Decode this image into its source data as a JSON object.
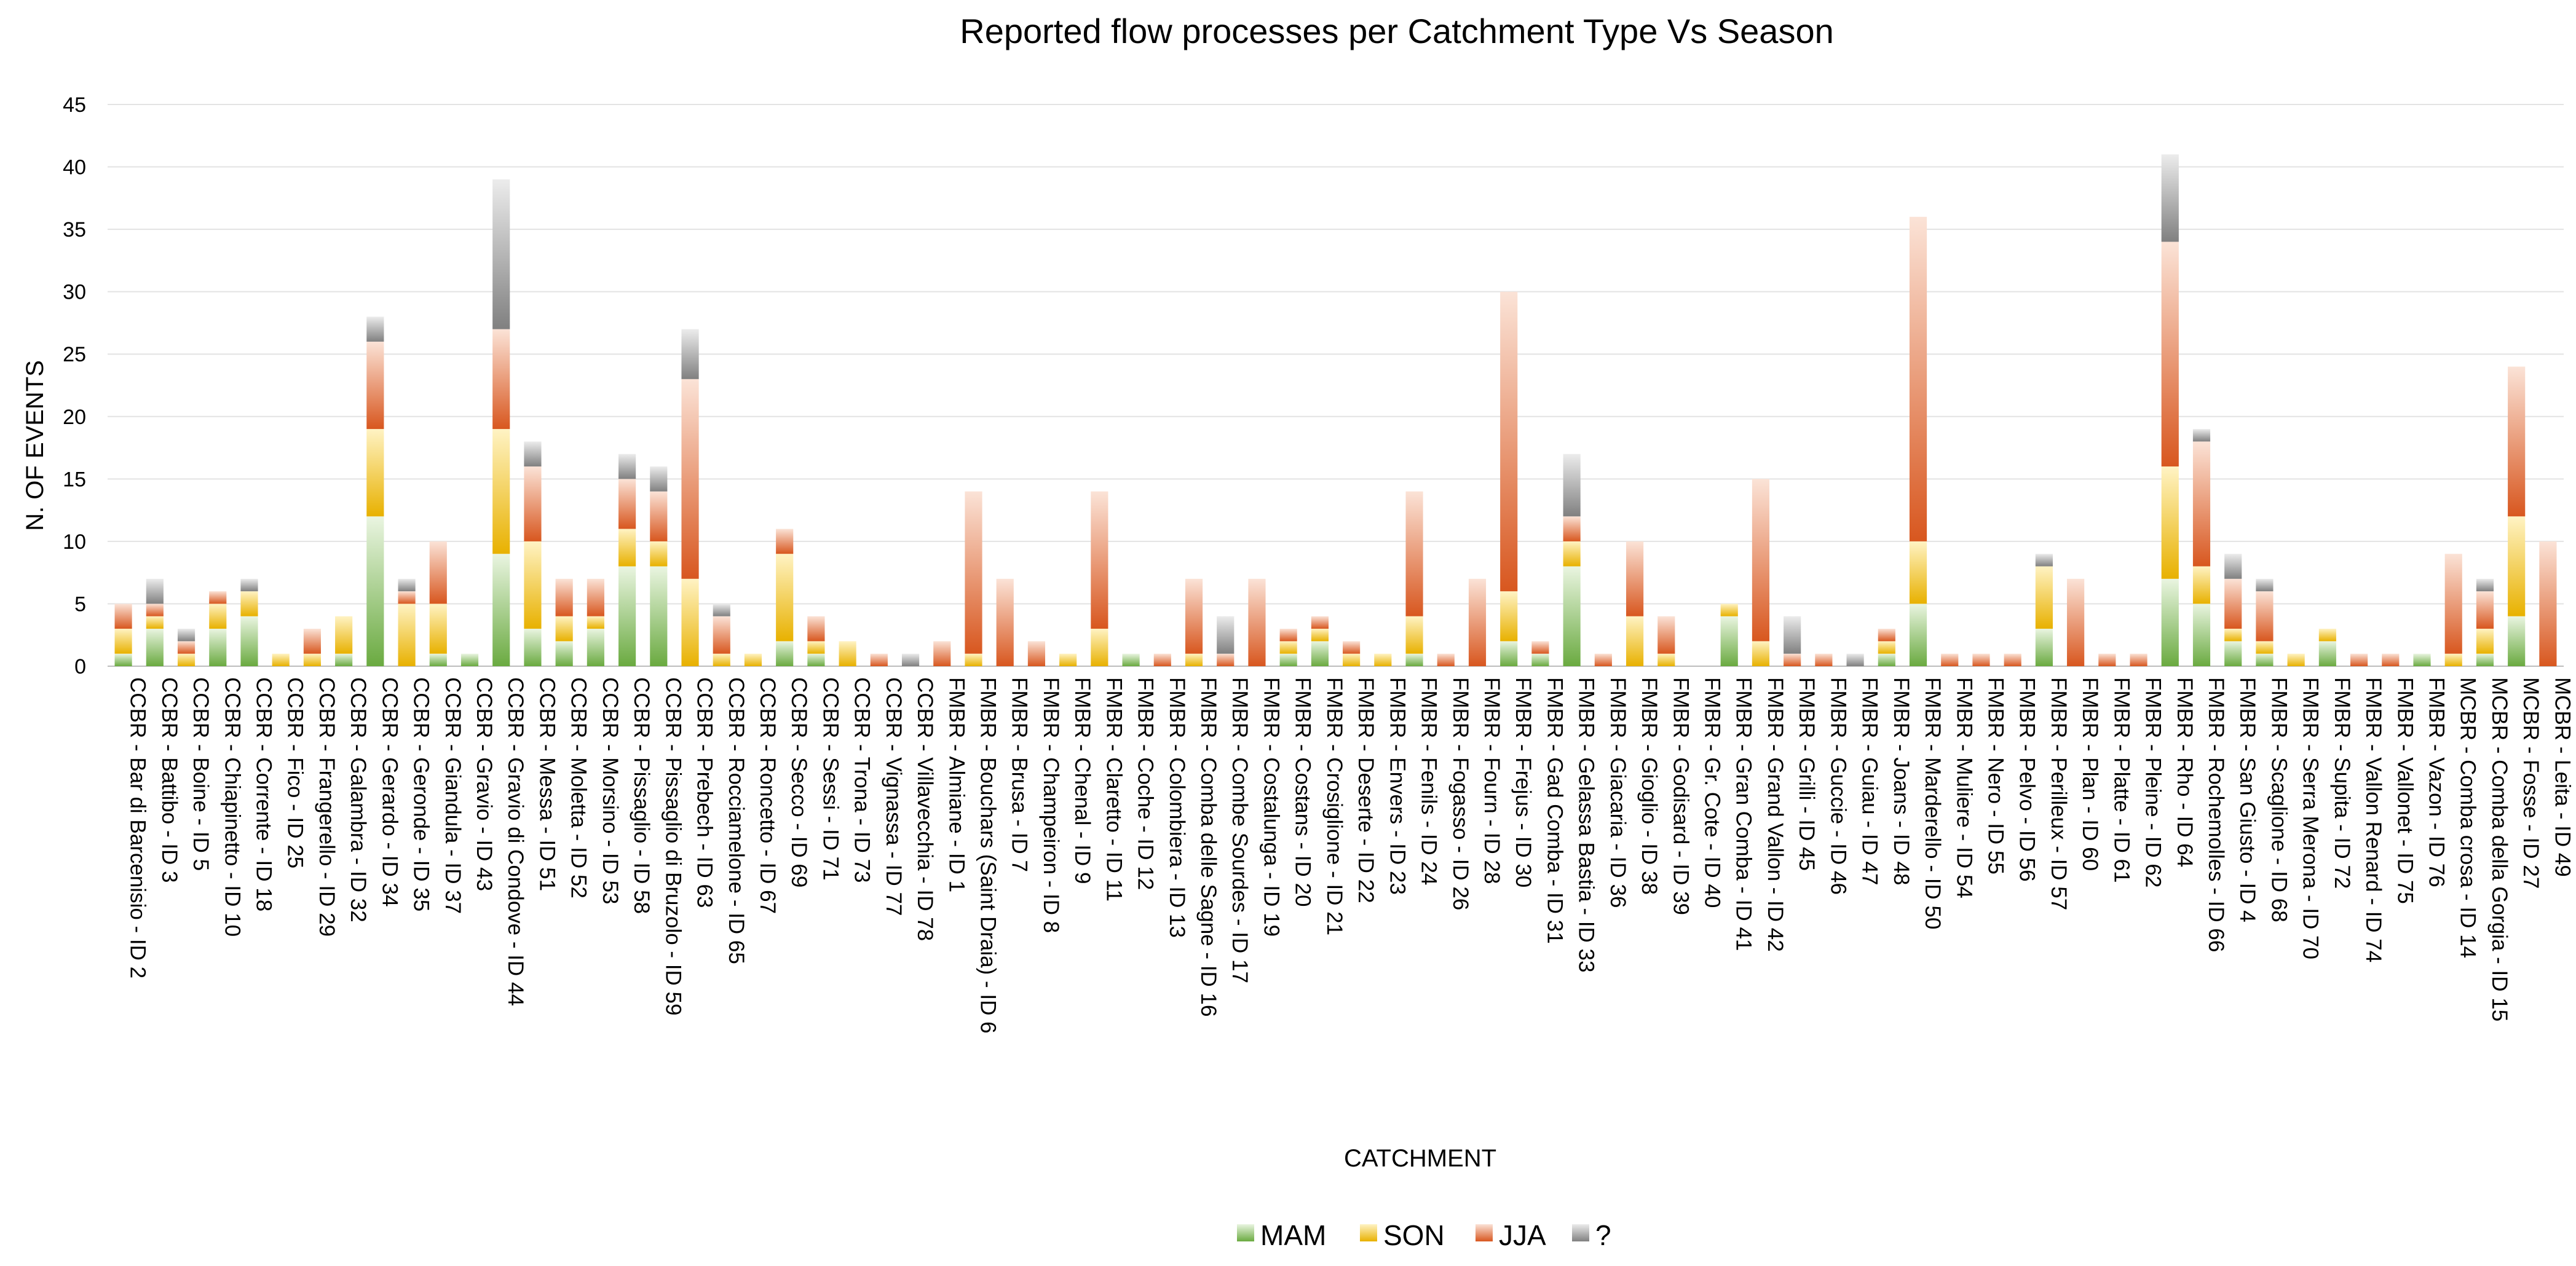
{
  "chart_data": {
    "type": "bar",
    "stacked": true,
    "title": "Reported flow processes per Catchment Type Vs Season",
    "xlabel": "CATCHMENT",
    "ylabel": "N. OF EVENTS",
    "ylim": [
      0,
      45
    ],
    "yticks": [
      0,
      5,
      10,
      15,
      20,
      25,
      30,
      35,
      40,
      45
    ],
    "grid": true,
    "legend_position": "bottom",
    "categories": [
      "CCBR - Bar di Barcenisio - ID 2",
      "CCBR - Battibo - ID 3",
      "CCBR - Boine - ID 5",
      "CCBR - Chiapinetto - ID 10",
      "CCBR - Corrente - ID 18",
      "CCBR - Fico - ID 25",
      "CCBR - Frangerello - ID 29",
      "CCBR - Galambra - ID 32",
      "CCBR - Gerardo - ID 34",
      "CCBR - Geronde - ID 35",
      "CCBR - Giandula - ID 37",
      "CCBR - Gravio - ID 43",
      "CCBR - Gravio di Condove - ID 44",
      "CCBR - Messa - ID 51",
      "CCBR - Moletta - ID 52",
      "CCBR - Morsino - ID 53",
      "CCBR - Pissaglio - ID 58",
      "CCBR - Pissaglio di Bruzolo - ID 59",
      "CCBR - Prebech - ID 63",
      "CCBR - Rocciamelone - ID 65",
      "CCBR - Roncetto - ID 67",
      "CCBR - Secco - ID 69",
      "CCBR - Sessi - ID 71",
      "CCBR - Trona - ID 73",
      "CCBR - Vignassa - ID 77",
      "CCBR - Villavecchia - ID 78",
      "FMBR - Almiane - ID 1",
      "FMBR - Bouchars (Saint Draia) - ID 6",
      "FMBR - Brusa - ID 7",
      "FMBR - Champeiron - ID 8",
      "FMBR - Chenal - ID 9",
      "FMBR - Claretto - ID 11",
      "FMBR - Coche - ID 12",
      "FMBR - Colombiera - ID 13",
      "FMBR - Comba delle Sagne - ID 16",
      "FMBR - Combe Sourdes - ID 17",
      "FMBR - Costalunga - ID 19",
      "FMBR - Costans - ID 20",
      "FMBR - Crosiglione - ID 21",
      "FMBR - Deserte - ID 22",
      "FMBR - Envers - ID 23",
      "FMBR - Fenils - ID 24",
      "FMBR - Fogasso - ID 26",
      "FMBR - Fourn - ID 28",
      "FMBR - Frejus - ID 30",
      "FMBR - Gad Comba - ID 31",
      "FMBR - Gelassa Bastia - ID 33",
      "FMBR - Giacaria - ID 36",
      "FMBR - Gioglio - ID 38",
      "FMBR - Godisard - ID 39",
      "FMBR - Gr. Cote - ID 40",
      "FMBR - Gran Comba - ID 41",
      "FMBR - Grand Vallon - ID 42",
      "FMBR - Grilli - ID 45",
      "FMBR - Guccie - ID 46",
      "FMBR - Guiau - ID 47",
      "FMBR - Joans - ID 48",
      "FMBR - Marderello - ID 50",
      "FMBR - Muliere - ID 54",
      "FMBR - Nero - ID 55",
      "FMBR - Pelvo - ID 56",
      "FMBR - Perilleux - ID 57",
      "FMBR - Plan - ID 60",
      "FMBR - Platte - ID 61",
      "FMBR - Pleine - ID 62",
      "FMBR - Rho - ID 64",
      "FMBR - Rochemolles - ID 66",
      "FMBR - San Giusto - ID 4",
      "FMBR - Scaglione - ID 68",
      "FMBR - Serra Merona - ID 70",
      "FMBR - Supita - ID 72",
      "FMBR - Vallon Renard - ID 74",
      "FMBR - Vallonet - ID 75",
      "FMBR - Vazon - ID 76",
      "MCBR - Comba crosa - ID 14",
      "MCBR - Comba della Gorgia - ID 15",
      "MCBR - Fosse - ID 27",
      "MCBR - Leita - ID 49"
    ],
    "series": [
      {
        "name": "MAM",
        "values": [
          1,
          3,
          0,
          3,
          4,
          0,
          0,
          1,
          12,
          0,
          1,
          1,
          9,
          3,
          2,
          3,
          8,
          8,
          0,
          0,
          0,
          2,
          1,
          0,
          0,
          0,
          0,
          0,
          0,
          0,
          0,
          0,
          1,
          0,
          0,
          0,
          0,
          1,
          2,
          0,
          0,
          1,
          0,
          0,
          2,
          1,
          8,
          0,
          0,
          0,
          0,
          4,
          0,
          0,
          0,
          0,
          1,
          5,
          0,
          0,
          0,
          3,
          0,
          0,
          0,
          7,
          5,
          2,
          1,
          0,
          2,
          0,
          0,
          1,
          0,
          1,
          4,
          0
        ]
      },
      {
        "name": "SON",
        "values": [
          2,
          1,
          1,
          2,
          2,
          1,
          1,
          3,
          7,
          5,
          4,
          0,
          10,
          7,
          2,
          1,
          3,
          2,
          7,
          1,
          1,
          7,
          1,
          2,
          0,
          0,
          0,
          1,
          0,
          0,
          1,
          3,
          0,
          0,
          1,
          0,
          0,
          1,
          1,
          1,
          1,
          3,
          0,
          0,
          4,
          0,
          2,
          0,
          4,
          1,
          0,
          1,
          2,
          0,
          0,
          0,
          1,
          5,
          0,
          0,
          0,
          5,
          0,
          0,
          0,
          9,
          3,
          1,
          1,
          1,
          1,
          0,
          0,
          0,
          1,
          2,
          8,
          0
        ]
      },
      {
        "name": "JJA",
        "values": [
          2,
          1,
          1,
          1,
          0,
          0,
          2,
          0,
          7,
          1,
          5,
          0,
          8,
          6,
          3,
          3,
          4,
          4,
          16,
          3,
          0,
          2,
          2,
          0,
          1,
          0,
          2,
          13,
          7,
          2,
          0,
          11,
          0,
          1,
          6,
          1,
          7,
          1,
          1,
          1,
          0,
          10,
          1,
          7,
          24,
          1,
          2,
          1,
          6,
          3,
          0,
          0,
          13,
          1,
          1,
          0,
          1,
          26,
          1,
          1,
          1,
          0,
          7,
          1,
          1,
          18,
          10,
          4,
          4,
          0,
          0,
          1,
          1,
          0,
          8,
          3,
          12,
          10
        ]
      },
      {
        "name": "?",
        "values": [
          0,
          2,
          1,
          0,
          1,
          0,
          0,
          0,
          2,
          1,
          0,
          0,
          12,
          2,
          0,
          0,
          2,
          2,
          4,
          1,
          0,
          0,
          0,
          0,
          0,
          1,
          0,
          0,
          0,
          0,
          0,
          0,
          0,
          0,
          0,
          3,
          0,
          0,
          0,
          0,
          0,
          0,
          0,
          0,
          0,
          0,
          5,
          0,
          0,
          0,
          0,
          0,
          0,
          3,
          0,
          1,
          0,
          0,
          0,
          0,
          0,
          1,
          0,
          0,
          0,
          7,
          1,
          2,
          1,
          0,
          0,
          0,
          0,
          0,
          0,
          1,
          0,
          0
        ]
      }
    ]
  },
  "legend": {
    "items": [
      {
        "label": "MAM",
        "color": "#70ad47"
      },
      {
        "label": "SON",
        "color": "#f5c000"
      },
      {
        "label": "JJA",
        "color": "#e0622a"
      },
      {
        "label": "?",
        "color": "#8c8c8c"
      }
    ]
  }
}
